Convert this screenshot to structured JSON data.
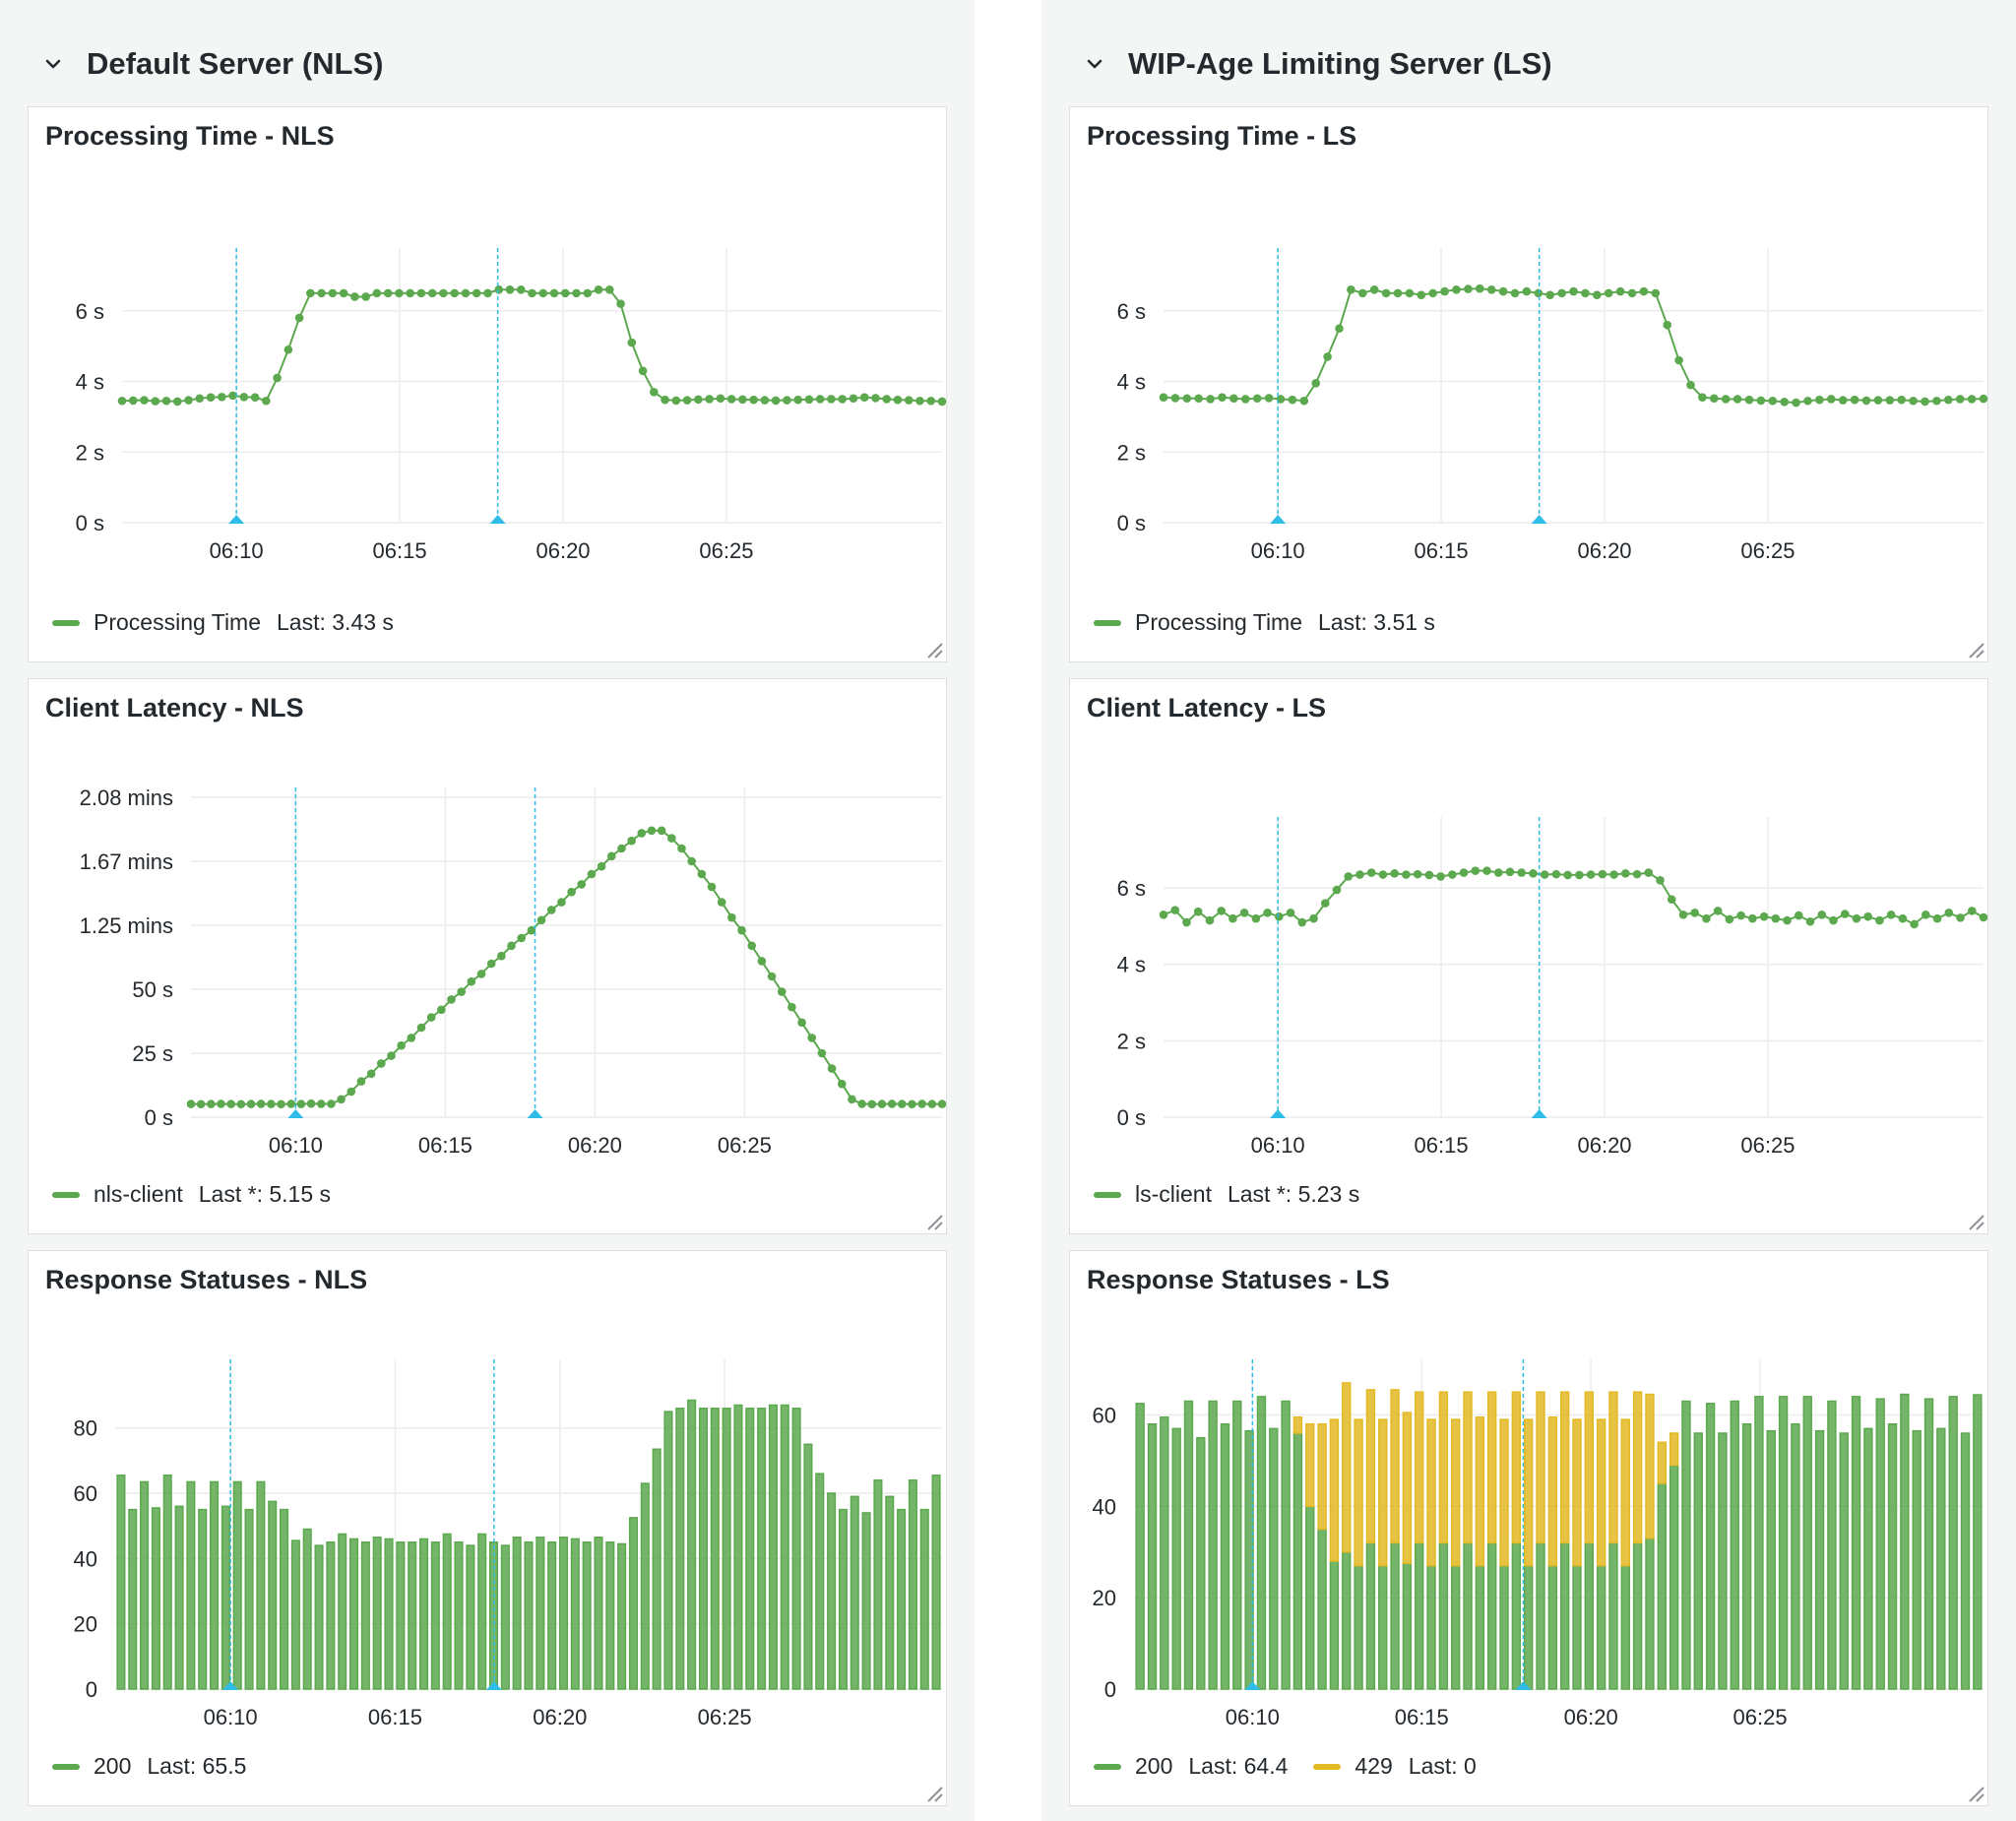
{
  "colors": {
    "green": "#5ca84f",
    "yellow": "#e3b924",
    "annotation": "#2fbde8",
    "grid": "#ececec",
    "text": "#24292e"
  },
  "rows": [
    {
      "title": "Default Server (NLS)",
      "icon": "chevron-down-icon",
      "panels": [
        {
          "title": "Processing Time - NLS",
          "legend": [
            {
              "label": "Processing Time",
              "last": "Last: 3.43 s",
              "color": "#5ca84f"
            }
          ],
          "chart_data": {
            "type": "line",
            "x_ticks": [
              "06:10",
              "06:15",
              "06:20",
              "06:25"
            ],
            "y_ticks": [
              "0 s",
              "2 s",
              "4 s",
              "6 s"
            ],
            "ylim": [
              0,
              7.5
            ],
            "annotations": [
              "06:10",
              "06:18"
            ],
            "series": [
              {
                "name": "Processing Time",
                "values": [
                  3.45,
                  3.46,
                  3.47,
                  3.44,
                  3.45,
                  3.43,
                  3.47,
                  3.52,
                  3.55,
                  3.56,
                  3.6,
                  3.56,
                  3.55,
                  3.45,
                  4.1,
                  4.9,
                  5.8,
                  6.5,
                  6.5,
                  6.5,
                  6.5,
                  6.4,
                  6.4,
                  6.5,
                  6.5,
                  6.5,
                  6.5,
                  6.5,
                  6.5,
                  6.5,
                  6.5,
                  6.5,
                  6.5,
                  6.5,
                  6.6,
                  6.6,
                  6.6,
                  6.5,
                  6.5,
                  6.5,
                  6.5,
                  6.5,
                  6.5,
                  6.6,
                  6.6,
                  6.2,
                  5.1,
                  4.3,
                  3.7,
                  3.48,
                  3.46,
                  3.47,
                  3.49,
                  3.5,
                  3.52,
                  3.5,
                  3.49,
                  3.48,
                  3.47,
                  3.46,
                  3.47,
                  3.48,
                  3.49,
                  3.5,
                  3.5,
                  3.5,
                  3.52,
                  3.55,
                  3.53,
                  3.5,
                  3.48,
                  3.47,
                  3.45,
                  3.45,
                  3.43
                ]
              }
            ]
          }
        },
        {
          "title": "Client Latency - NLS",
          "legend": [
            {
              "label": "nls-client",
              "last": "Last *: 5.15 s",
              "color": "#5ca84f"
            }
          ],
          "chart_data": {
            "type": "line",
            "x_ticks": [
              "06:10",
              "06:15",
              "06:20",
              "06:25"
            ],
            "y_ticks": [
              "0 s",
              "25 s",
              "50 s",
              "1.25 mins",
              "1.67 mins",
              "2.08 mins"
            ],
            "ylim": [
              0,
              125
            ],
            "annotations": [
              "06:10",
              "06:18"
            ],
            "series": [
              {
                "name": "nls-client",
                "values": [
                  5.15,
                  5.1,
                  5.15,
                  5.2,
                  5.15,
                  5.1,
                  5.15,
                  5.2,
                  5.15,
                  5.1,
                  5.2,
                  5.15,
                  5.3,
                  5.2,
                  5.2,
                  7,
                  10,
                  14,
                  17,
                  21,
                  24,
                  28,
                  31,
                  35,
                  39,
                  42,
                  46,
                  49,
                  53,
                  56,
                  60,
                  63,
                  67,
                  70,
                  73,
                  77,
                  81,
                  84,
                  88,
                  91,
                  95,
                  98,
                  102,
                  105,
                  108,
                  111,
                  112,
                  112,
                  109,
                  105,
                  100,
                  95,
                  90,
                  84,
                  78,
                  73,
                  67,
                  61,
                  55,
                  49,
                  43,
                  37,
                  31,
                  25,
                  19,
                  13,
                  7,
                  5.2,
                  5.1,
                  5.15,
                  5.2,
                  5.15,
                  5.1,
                  5.2,
                  5.15,
                  5.15
                ]
              }
            ]
          }
        },
        {
          "title": "Response Statuses - NLS",
          "legend": [
            {
              "label": "200",
              "last": "Last: 65.5",
              "color": "#5ca84f"
            }
          ],
          "chart_data": {
            "type": "bar",
            "stacked": true,
            "x_ticks": [
              "06:10",
              "06:15",
              "06:20",
              "06:25"
            ],
            "y_ticks": [
              "0",
              "20",
              "40",
              "60",
              "80"
            ],
            "ylim": [
              0,
              98
            ],
            "annotations": [
              "06:10",
              "06:18"
            ],
            "series": [
              {
                "name": "200",
                "values": [
                  65.5,
                  55,
                  63.5,
                  55.5,
                  65.5,
                  56,
                  63.5,
                  55,
                  63.5,
                  56,
                  63.5,
                  55,
                  63.5,
                  57.5,
                  55,
                  45.5,
                  49,
                  44,
                  45,
                  47.5,
                  46,
                  45,
                  46.5,
                  46,
                  45,
                  45,
                  46,
                  45,
                  47.5,
                  45,
                  44,
                  47.5,
                  45,
                  44,
                  46.5,
                  45,
                  46.5,
                  45,
                  46.5,
                  46,
                  45,
                  46.5,
                  45,
                  44.5,
                  52.5,
                  63,
                  73.5,
                  85,
                  86,
                  88.5,
                  86,
                  86,
                  86,
                  87,
                  86,
                  86,
                  87,
                  87,
                  86,
                  75,
                  66,
                  60,
                  55,
                  59,
                  54,
                  64,
                  59,
                  55,
                  64,
                  55,
                  65.5
                ]
              }
            ]
          }
        }
      ]
    },
    {
      "title": "WIP-Age Limiting Server (LS)",
      "icon": "chevron-down-icon",
      "panels": [
        {
          "title": "Processing Time - LS",
          "legend": [
            {
              "label": "Processing Time",
              "last": "Last: 3.51 s",
              "color": "#5ca84f"
            }
          ],
          "chart_data": {
            "type": "line",
            "x_ticks": [
              "06:10",
              "06:15",
              "06:20",
              "06:25"
            ],
            "y_ticks": [
              "0 s",
              "2 s",
              "4 s",
              "6 s"
            ],
            "ylim": [
              0,
              7.5
            ],
            "annotations": [
              "06:10",
              "06:18"
            ],
            "series": [
              {
                "name": "Processing Time",
                "values": [
                  3.55,
                  3.53,
                  3.52,
                  3.52,
                  3.5,
                  3.55,
                  3.52,
                  3.5,
                  3.52,
                  3.53,
                  3.5,
                  3.48,
                  3.45,
                  3.95,
                  4.7,
                  5.5,
                  6.6,
                  6.5,
                  6.6,
                  6.5,
                  6.5,
                  6.5,
                  6.45,
                  6.5,
                  6.55,
                  6.6,
                  6.62,
                  6.63,
                  6.6,
                  6.55,
                  6.5,
                  6.55,
                  6.5,
                  6.45,
                  6.5,
                  6.55,
                  6.5,
                  6.45,
                  6.5,
                  6.55,
                  6.5,
                  6.55,
                  6.5,
                  5.6,
                  4.6,
                  3.9,
                  3.55,
                  3.52,
                  3.5,
                  3.5,
                  3.48,
                  3.46,
                  3.45,
                  3.42,
                  3.4,
                  3.45,
                  3.48,
                  3.5,
                  3.47,
                  3.48,
                  3.46,
                  3.47,
                  3.47,
                  3.48,
                  3.45,
                  3.43,
                  3.45,
                  3.48,
                  3.5,
                  3.5,
                  3.51
                ]
              }
            ]
          }
        },
        {
          "title": "Client Latency - LS",
          "legend": [
            {
              "label": "ls-client",
              "last": "Last *: 5.23 s",
              "color": "#5ca84f"
            }
          ],
          "chart_data": {
            "type": "line",
            "x_ticks": [
              "06:10",
              "06:15",
              "06:20",
              "06:25"
            ],
            "y_ticks": [
              "0 s",
              "2 s",
              "4 s",
              "6 s"
            ],
            "ylim": [
              0,
              7.6
            ],
            "annotations": [
              "06:10",
              "06:18"
            ],
            "series": [
              {
                "name": "ls-client",
                "values": [
                  5.3,
                  5.42,
                  5.1,
                  5.38,
                  5.15,
                  5.4,
                  5.2,
                  5.35,
                  5.2,
                  5.35,
                  5.25,
                  5.35,
                  5.1,
                  5.2,
                  5.6,
                  5.95,
                  6.3,
                  6.35,
                  6.4,
                  6.35,
                  6.38,
                  6.35,
                  6.36,
                  6.34,
                  6.3,
                  6.35,
                  6.4,
                  6.45,
                  6.45,
                  6.4,
                  6.42,
                  6.4,
                  6.38,
                  6.35,
                  6.36,
                  6.34,
                  6.34,
                  6.35,
                  6.36,
                  6.35,
                  6.38,
                  6.36,
                  6.4,
                  6.2,
                  5.7,
                  5.3,
                  5.35,
                  5.2,
                  5.4,
                  5.18,
                  5.28,
                  5.2,
                  5.25,
                  5.2,
                  5.15,
                  5.28,
                  5.12,
                  5.3,
                  5.15,
                  5.32,
                  5.2,
                  5.25,
                  5.15,
                  5.3,
                  5.2,
                  5.05,
                  5.3,
                  5.2,
                  5.35,
                  5.22,
                  5.4,
                  5.23
                ]
              }
            ]
          }
        },
        {
          "title": "Response Statuses - LS",
          "legend": [
            {
              "label": "200",
              "last": "Last: 64.4",
              "color": "#5ca84f"
            },
            {
              "label": "429",
              "last": "Last: 0",
              "color": "#e3b924"
            }
          ],
          "chart_data": {
            "type": "bar",
            "stacked": true,
            "x_ticks": [
              "06:10",
              "06:15",
              "06:20",
              "06:25"
            ],
            "y_ticks": [
              "0",
              "20",
              "40",
              "60"
            ],
            "ylim": [
              0,
              70
            ],
            "annotations": [
              "06:10",
              "06:18"
            ],
            "series": [
              {
                "name": "200",
                "values": [
                  62.5,
                  58,
                  59.5,
                  57,
                  63,
                  55,
                  63,
                  58,
                  63,
                  56.5,
                  64,
                  57,
                  63,
                  56,
                  40,
                  35,
                  28,
                  30,
                  27,
                  32,
                  27,
                  32,
                  27.5,
                  32,
                  27,
                  32,
                  27,
                  32,
                  27,
                  32,
                  27,
                  32,
                  27,
                  32,
                  27,
                  32,
                  27,
                  32,
                  27,
                  32,
                  27,
                  32,
                  33,
                  45,
                  49,
                  63,
                  56,
                  62.5,
                  56,
                  63,
                  58,
                  64,
                  56.5,
                  64,
                  58,
                  64,
                  56.5,
                  63,
                  56,
                  64,
                  57,
                  63.5,
                  58,
                  64.5,
                  56.5,
                  63.5,
                  57,
                  64,
                  56,
                  64.4
                ]
              },
              {
                "name": "429",
                "values": [
                  0,
                  0,
                  0,
                  0,
                  0,
                  0,
                  0,
                  0,
                  0,
                  0,
                  0,
                  0,
                  0,
                  3.5,
                  18,
                  23,
                  31,
                  37,
                  32,
                  33.5,
                  32,
                  33.5,
                  33,
                  33,
                  32,
                  33,
                  32,
                  33,
                  32.5,
                  33,
                  32,
                  33,
                  32,
                  33,
                  32.5,
                  33,
                  32,
                  33,
                  32,
                  33,
                  32,
                  33,
                  31.5,
                  9,
                  7,
                  0,
                  0,
                  0,
                  0,
                  0,
                  0,
                  0,
                  0,
                  0,
                  0,
                  0,
                  0,
                  0,
                  0,
                  0,
                  0,
                  0,
                  0,
                  0,
                  0,
                  0,
                  0,
                  0,
                  0,
                  0
                ]
              }
            ]
          }
        }
      ]
    }
  ]
}
